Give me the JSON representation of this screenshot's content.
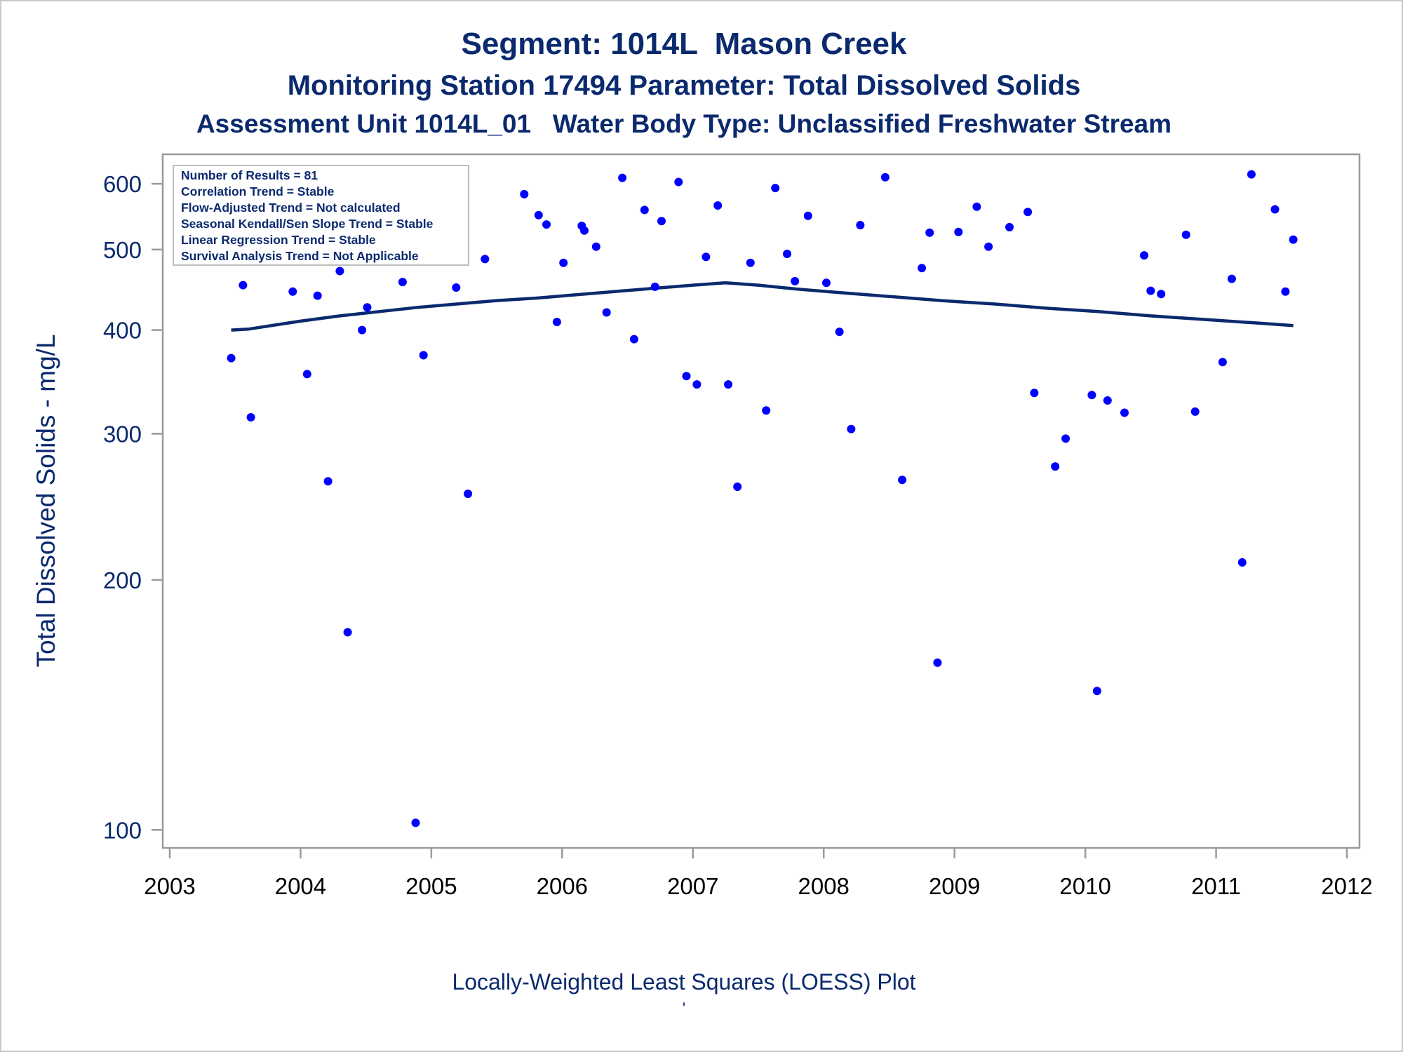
{
  "titles": {
    "line1": "Segment: 1014L  Mason Creek",
    "line2": "Monitoring Station 17494 Parameter: Total Dissolved Solids",
    "line3": "Assessment Unit 1014L_01   Water Body Type: Unclassified Freshwater Stream"
  },
  "footnotes": {
    "line1": "Locally-Weighted Least Squares (LOESS) Plot",
    "line2": "'"
  },
  "colors": {
    "text": "#0b2a6e",
    "points": "#0000ff",
    "loess": "#0b2a6e",
    "frame": "#9a9a9a"
  },
  "chart_data": {
    "type": "scatter",
    "ylabel": "Total Dissolved Solids - mg/L",
    "xlabel": "",
    "y_scale": "log",
    "xlim": [
      2003,
      2012
    ],
    "ylim": [
      97,
      630
    ],
    "x_ticks": [
      "2003",
      "2004",
      "2005",
      "2006",
      "2007",
      "2008",
      "2009",
      "2010",
      "2011",
      "2012"
    ],
    "y_ticks": [
      "100",
      "200",
      "300",
      "400",
      "500",
      "600"
    ],
    "grid": false,
    "legend_inset": {
      "placement": "top-left",
      "lines": [
        "Number of Results = 81",
        "Correlation Trend = Stable",
        "Flow-Adjusted Trend = Not calculated",
        "Seasonal Kendall/Sen Slope Trend = Stable",
        "Linear Regression Trend = Stable",
        "Survival Analysis Trend = Not Applicable"
      ]
    },
    "series": [
      {
        "type": "scatter",
        "x": [
          2003.47,
          2003.56,
          2003.62,
          2003.94,
          2004.05,
          2004.13,
          2004.21,
          2004.3,
          2004.36,
          2004.47,
          2004.51,
          2004.6,
          2004.73,
          2004.78,
          2004.88,
          2004.94,
          2005.07,
          2005.15,
          2005.19,
          2005.28,
          2005.41,
          2005.71,
          2005.82,
          2005.88,
          2005.96,
          2006.01,
          2006.15,
          2006.17,
          2006.26,
          2006.34,
          2006.46,
          2006.55,
          2006.63,
          2006.71,
          2006.76,
          2006.89,
          2006.95,
          2007.03,
          2007.1,
          2007.19,
          2007.27,
          2007.34,
          2007.44,
          2007.56,
          2007.63,
          2007.72,
          2007.78,
          2007.88,
          2008.02,
          2008.12,
          2008.21,
          2008.28,
          2008.47,
          2008.6,
          2008.75,
          2008.81,
          2008.87,
          2009.03,
          2009.17,
          2009.26,
          2009.42,
          2009.56,
          2009.61,
          2009.77,
          2009.85,
          2010.05,
          2010.09,
          2010.17,
          2010.3,
          2010.45,
          2010.5,
          2010.58,
          2010.77,
          2010.84,
          2011.05,
          2011.12,
          2011.2,
          2011.27,
          2011.45,
          2011.53,
          2011.59
        ],
        "y": [
          370,
          453,
          314,
          445,
          354,
          440,
          263,
          471,
          173,
          400,
          426,
          485,
          508,
          457,
          102,
          373,
          538,
          538,
          450,
          254,
          487,
          583,
          550,
          536,
          409,
          482,
          534,
          527,
          504,
          420,
          610,
          390,
          558,
          451,
          541,
          603,
          352,
          344,
          490,
          565,
          344,
          259,
          482,
          320,
          593,
          494,
          458,
          549,
          456,
          398,
          304,
          535,
          611,
          264,
          475,
          524,
          159,
          525,
          563,
          504,
          532,
          555,
          336,
          274,
          296,
          334,
          147,
          329,
          318,
          492,
          446,
          442,
          521,
          319,
          366,
          461,
          210,
          616,
          559,
          445,
          514
        ]
      },
      {
        "type": "line",
        "name": "",
        "x": [
          2003.47,
          2003.6,
          2004.0,
          2004.3,
          2004.6,
          2004.9,
          2005.2,
          2005.5,
          2005.8,
          2006.1,
          2006.4,
          2006.7,
          2007.0,
          2007.25,
          2007.5,
          2007.8,
          2008.1,
          2008.5,
          2008.9,
          2009.3,
          2009.7,
          2010.1,
          2010.5,
          2010.9,
          2011.3,
          2011.59
        ],
        "y": [
          400,
          401,
          410,
          416,
          421,
          426,
          430,
          434,
          437,
          441,
          445,
          449,
          453,
          456,
          453,
          448,
          444,
          439,
          434,
          430,
          425,
          421,
          416,
          412,
          408,
          405
        ]
      }
    ]
  }
}
